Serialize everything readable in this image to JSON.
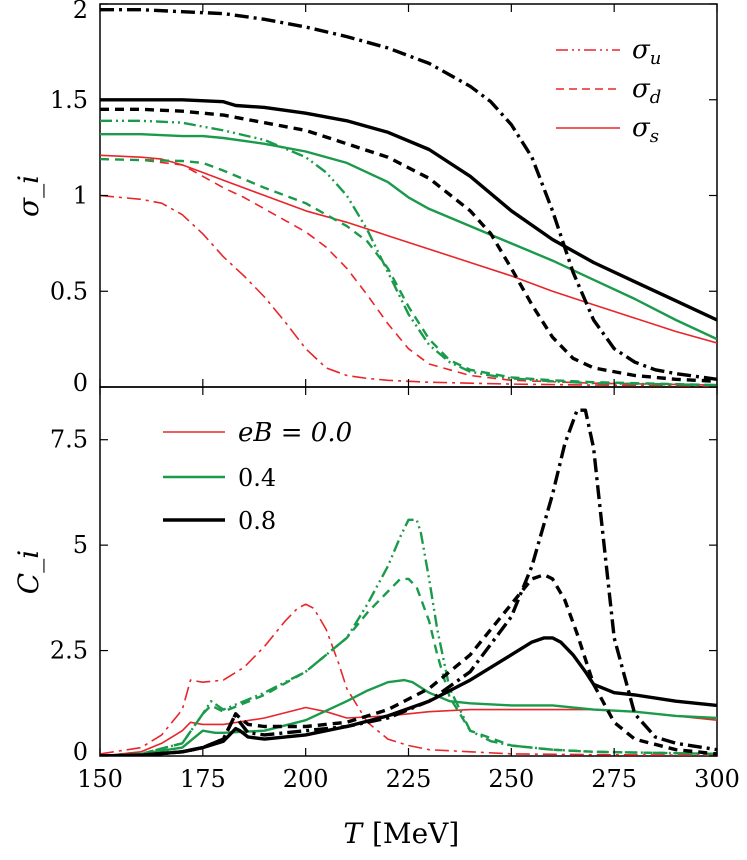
{
  "chart_data": [
    {
      "type": "line",
      "panel": "top",
      "ylabel": "σ_i",
      "ylim": [
        0,
        2
      ],
      "xlim": [
        150,
        300
      ],
      "yticks": [
        {
          "value": 0,
          "label": "0"
        },
        {
          "value": 0.5,
          "label": "0.5"
        },
        {
          "value": 1,
          "label": "1"
        },
        {
          "value": 1.5,
          "label": "1.5"
        },
        {
          "value": 2,
          "label": "2"
        }
      ],
      "legend": {
        "position": "top-right",
        "entries": [
          {
            "label": "σ",
            "sub": "u",
            "style": "dashdotdot",
            "color": "#e8262a"
          },
          {
            "label": "σ",
            "sub": "d",
            "style": "dashed",
            "color": "#e8262a"
          },
          {
            "label": "σ",
            "sub": "s",
            "style": "solid",
            "color": "#e8262a"
          }
        ]
      },
      "series": [
        {
          "name": "σ_u, eB = 0.0",
          "color": "#e8262a",
          "style": "dashdot",
          "width": 1.6,
          "x": [
            150,
            160,
            165,
            170,
            175,
            180,
            185,
            190,
            195,
            200,
            205,
            210,
            215,
            220,
            230,
            240,
            250,
            270,
            300
          ],
          "y": [
            1.0,
            0.98,
            0.96,
            0.9,
            0.8,
            0.68,
            0.58,
            0.47,
            0.34,
            0.2,
            0.1,
            0.06,
            0.045,
            0.035,
            0.025,
            0.02,
            0.015,
            0.01,
            0.005
          ]
        },
        {
          "name": "σ_d, eB = 0.0",
          "color": "#e8262a",
          "style": "dashed",
          "width": 1.6,
          "x": [
            150,
            160,
            170,
            175,
            180,
            185,
            190,
            195,
            200,
            205,
            210,
            215,
            220,
            225,
            230,
            240,
            250,
            270,
            300
          ],
          "y": [
            1.19,
            1.185,
            1.16,
            1.1,
            1.04,
            0.99,
            0.93,
            0.87,
            0.81,
            0.73,
            0.62,
            0.48,
            0.33,
            0.2,
            0.12,
            0.06,
            0.035,
            0.02,
            0.01
          ]
        },
        {
          "name": "σ_s, eB = 0.0",
          "color": "#e8262a",
          "style": "solid",
          "width": 1.6,
          "x": [
            150,
            160,
            165,
            170,
            175,
            180,
            190,
            200,
            210,
            220,
            230,
            240,
            250,
            260,
            270,
            280,
            290,
            300
          ],
          "y": [
            1.21,
            1.2,
            1.19,
            1.16,
            1.12,
            1.08,
            1.0,
            0.92,
            0.86,
            0.79,
            0.72,
            0.65,
            0.58,
            0.5,
            0.43,
            0.36,
            0.29,
            0.23
          ]
        },
        {
          "name": "σ_u, eB = 0.4",
          "color": "#1a9a4a",
          "style": "dashdotdot",
          "width": 2.4,
          "x": [
            150,
            160,
            170,
            175,
            180,
            190,
            200,
            205,
            210,
            215,
            220,
            225,
            230,
            235,
            240,
            245,
            250,
            260,
            270,
            300
          ],
          "y": [
            1.39,
            1.39,
            1.38,
            1.36,
            1.34,
            1.29,
            1.2,
            1.12,
            1.0,
            0.82,
            0.6,
            0.38,
            0.22,
            0.13,
            0.08,
            0.06,
            0.045,
            0.03,
            0.02,
            0.01
          ]
        },
        {
          "name": "σ_d, eB = 0.4",
          "color": "#1a9a4a",
          "style": "dashed",
          "width": 2.4,
          "x": [
            150,
            160,
            170,
            175,
            180,
            190,
            200,
            205,
            210,
            215,
            220,
            225,
            230,
            235,
            240,
            250,
            260,
            270,
            300
          ],
          "y": [
            1.19,
            1.185,
            1.18,
            1.17,
            1.13,
            1.04,
            0.96,
            0.9,
            0.84,
            0.76,
            0.62,
            0.42,
            0.25,
            0.14,
            0.09,
            0.05,
            0.035,
            0.025,
            0.01
          ]
        },
        {
          "name": "σ_s, eB = 0.4",
          "color": "#1a9a4a",
          "style": "solid",
          "width": 2.4,
          "x": [
            150,
            160,
            170,
            175,
            180,
            190,
            200,
            210,
            220,
            225,
            230,
            240,
            250,
            260,
            270,
            280,
            290,
            300
          ],
          "y": [
            1.32,
            1.32,
            1.31,
            1.31,
            1.3,
            1.27,
            1.23,
            1.17,
            1.07,
            0.99,
            0.93,
            0.84,
            0.75,
            0.66,
            0.56,
            0.46,
            0.35,
            0.25
          ]
        },
        {
          "name": "σ_u, eB = 0.8",
          "color": "#000000",
          "style": "dashdot",
          "width": 3.4,
          "x": [
            150,
            160,
            170,
            180,
            190,
            200,
            210,
            220,
            230,
            240,
            245,
            250,
            255,
            260,
            265,
            270,
            275,
            280,
            285,
            290,
            300
          ],
          "y": [
            1.97,
            1.97,
            1.96,
            1.95,
            1.92,
            1.88,
            1.83,
            1.77,
            1.69,
            1.57,
            1.49,
            1.37,
            1.2,
            0.92,
            0.6,
            0.35,
            0.2,
            0.13,
            0.09,
            0.07,
            0.04
          ]
        },
        {
          "name": "σ_d, eB = 0.8",
          "color": "#000000",
          "style": "dashed",
          "width": 3.4,
          "x": [
            150,
            160,
            170,
            180,
            190,
            200,
            210,
            220,
            230,
            240,
            245,
            250,
            255,
            260,
            265,
            270,
            280,
            290,
            300
          ],
          "y": [
            1.45,
            1.45,
            1.44,
            1.42,
            1.38,
            1.34,
            1.27,
            1.2,
            1.09,
            0.92,
            0.8,
            0.62,
            0.43,
            0.26,
            0.15,
            0.1,
            0.06,
            0.04,
            0.03
          ]
        },
        {
          "name": "σ_s, eB = 0.8",
          "color": "#000000",
          "style": "solid",
          "width": 3.4,
          "x": [
            150,
            160,
            170,
            180,
            183,
            190,
            200,
            210,
            220,
            230,
            240,
            250,
            260,
            265,
            270,
            280,
            290,
            300
          ],
          "y": [
            1.5,
            1.5,
            1.5,
            1.49,
            1.47,
            1.46,
            1.43,
            1.39,
            1.33,
            1.24,
            1.1,
            0.92,
            0.77,
            0.71,
            0.65,
            0.55,
            0.45,
            0.35
          ]
        }
      ]
    },
    {
      "type": "line",
      "panel": "bottom",
      "ylabel": "C_i",
      "xlabel": "T",
      "xunit": "[MeV]",
      "ylim": [
        0,
        8.75
      ],
      "xlim": [
        150,
        300
      ],
      "xticks": [
        {
          "value": 150,
          "label": "150"
        },
        {
          "value": 175,
          "label": "175"
        },
        {
          "value": 200,
          "label": "200"
        },
        {
          "value": 225,
          "label": "225"
        },
        {
          "value": 250,
          "label": "250"
        },
        {
          "value": 275,
          "label": "275"
        },
        {
          "value": 300,
          "label": "300"
        }
      ],
      "yticks": [
        {
          "value": 0,
          "label": "0"
        },
        {
          "value": 2.5,
          "label": "2.5"
        },
        {
          "value": 5,
          "label": "5"
        },
        {
          "value": 7.5,
          "label": "7.5"
        }
      ],
      "legend": {
        "position": "top-left",
        "entries": [
          {
            "label": "eB = 0.0",
            "style": "solid",
            "color": "#e8262a",
            "width": 1.6
          },
          {
            "label": "0.4",
            "style": "solid",
            "color": "#1a9a4a",
            "width": 2.4
          },
          {
            "label": "0.8",
            "style": "solid",
            "color": "#000000",
            "width": 3.4
          }
        ]
      },
      "series": [
        {
          "name": "C_u, eB = 0.0",
          "color": "#e8262a",
          "style": "dashdot",
          "width": 1.6,
          "x": [
            150,
            160,
            165,
            170,
            172,
            175,
            180,
            185,
            190,
            195,
            198,
            200,
            202,
            205,
            208,
            210,
            215,
            220,
            225,
            230,
            240,
            250,
            270,
            300
          ],
          "y": [
            0.05,
            0.2,
            0.5,
            1.1,
            1.8,
            1.75,
            1.8,
            2.1,
            2.6,
            3.2,
            3.5,
            3.6,
            3.5,
            3.0,
            2.2,
            1.6,
            0.8,
            0.4,
            0.25,
            0.15,
            0.1,
            0.05,
            0.03,
            0.02
          ]
        },
        {
          "name": "C_d, eB = 0.0",
          "color": "#e8262a",
          "style": "solid",
          "width": 1.6,
          "x": [
            150,
            160,
            165,
            170,
            172,
            175,
            180,
            190,
            200,
            205,
            210,
            220,
            230,
            240,
            250,
            260,
            270,
            280,
            290,
            300
          ],
          "y": [
            0.0,
            0.1,
            0.3,
            0.6,
            0.8,
            0.75,
            0.75,
            0.9,
            1.15,
            1.05,
            0.9,
            0.95,
            1.05,
            1.1,
            1.1,
            1.1,
            1.1,
            1.05,
            0.95,
            0.85
          ]
        },
        {
          "name": "C_u, eB = 0.4",
          "color": "#1a9a4a",
          "style": "dashdotdot",
          "width": 2.4,
          "x": [
            150,
            160,
            170,
            175,
            177,
            180,
            185,
            190,
            200,
            210,
            215,
            220,
            223,
            225,
            227,
            228,
            230,
            232,
            235,
            240,
            245,
            250,
            260,
            270,
            300
          ],
          "y": [
            0.0,
            0.05,
            0.3,
            1.0,
            1.3,
            1.1,
            1.3,
            1.5,
            2.0,
            2.8,
            3.6,
            4.5,
            5.2,
            5.6,
            5.6,
            5.3,
            4.2,
            3.0,
            1.6,
            0.6,
            0.35,
            0.25,
            0.15,
            0.1,
            0.05
          ]
        },
        {
          "name": "C_d, eB = 0.4",
          "color": "#1a9a4a",
          "style": "dashed",
          "width": 2.4,
          "x": [
            150,
            160,
            170,
            175,
            177,
            180,
            185,
            190,
            200,
            210,
            215,
            220,
            223,
            225,
            227,
            230,
            232,
            235,
            240,
            250,
            260,
            270,
            300
          ],
          "y": [
            0.0,
            0.05,
            0.3,
            1.0,
            1.2,
            1.05,
            1.25,
            1.45,
            2.0,
            2.8,
            3.4,
            3.9,
            4.2,
            4.2,
            4.0,
            3.2,
            2.4,
            1.4,
            0.6,
            0.25,
            0.15,
            0.1,
            0.05
          ]
        },
        {
          "name": "C_s, eB = 0.4",
          "color": "#1a9a4a",
          "style": "solid",
          "width": 2.4,
          "x": [
            150,
            160,
            170,
            175,
            178,
            180,
            190,
            200,
            210,
            215,
            220,
            224,
            226,
            230,
            235,
            240,
            250,
            260,
            270,
            280,
            290,
            300
          ],
          "y": [
            0.0,
            0.05,
            0.2,
            0.6,
            0.55,
            0.55,
            0.6,
            0.85,
            1.3,
            1.55,
            1.75,
            1.8,
            1.75,
            1.5,
            1.3,
            1.25,
            1.2,
            1.2,
            1.1,
            1.05,
            0.95,
            0.9
          ]
        },
        {
          "name": "C_u, eB = 0.8",
          "color": "#000000",
          "style": "dashdot",
          "width": 3.4,
          "x": [
            150,
            160,
            170,
            175,
            180,
            183,
            184,
            186,
            190,
            200,
            210,
            220,
            230,
            240,
            250,
            255,
            260,
            263,
            266,
            268,
            270,
            272,
            275,
            280,
            285,
            290,
            300
          ],
          "y": [
            0.0,
            0.02,
            0.1,
            0.2,
            0.4,
            1.0,
            0.8,
            0.55,
            0.5,
            0.6,
            0.7,
            0.9,
            1.3,
            2.0,
            3.3,
            4.5,
            6.2,
            7.4,
            8.2,
            8.2,
            7.3,
            5.5,
            2.8,
            1.0,
            0.45,
            0.3,
            0.15
          ]
        },
        {
          "name": "C_d, eB = 0.8",
          "color": "#000000",
          "style": "dashed",
          "width": 3.4,
          "x": [
            150,
            160,
            170,
            175,
            180,
            183,
            184,
            186,
            190,
            200,
            210,
            220,
            230,
            240,
            250,
            255,
            258,
            260,
            263,
            266,
            270,
            275,
            280,
            290,
            300
          ],
          "y": [
            0.0,
            0.02,
            0.1,
            0.2,
            0.4,
            1.0,
            0.9,
            0.75,
            0.7,
            0.7,
            0.8,
            1.1,
            1.6,
            2.4,
            3.6,
            4.2,
            4.3,
            4.2,
            3.7,
            2.9,
            1.7,
            0.8,
            0.4,
            0.15,
            0.05
          ]
        },
        {
          "name": "C_s, eB = 0.8",
          "color": "#000000",
          "style": "solid",
          "width": 3.4,
          "x": [
            150,
            160,
            170,
            175,
            180,
            182,
            183,
            184,
            186,
            190,
            200,
            210,
            220,
            230,
            240,
            250,
            255,
            258,
            260,
            262,
            265,
            268,
            270,
            275,
            280,
            290,
            300
          ],
          "y": [
            0.0,
            0.02,
            0.1,
            0.2,
            0.35,
            0.55,
            0.65,
            0.6,
            0.45,
            0.4,
            0.5,
            0.7,
            0.95,
            1.3,
            1.8,
            2.4,
            2.7,
            2.8,
            2.8,
            2.7,
            2.4,
            2.0,
            1.7,
            1.5,
            1.45,
            1.3,
            1.2
          ]
        }
      ]
    }
  ]
}
